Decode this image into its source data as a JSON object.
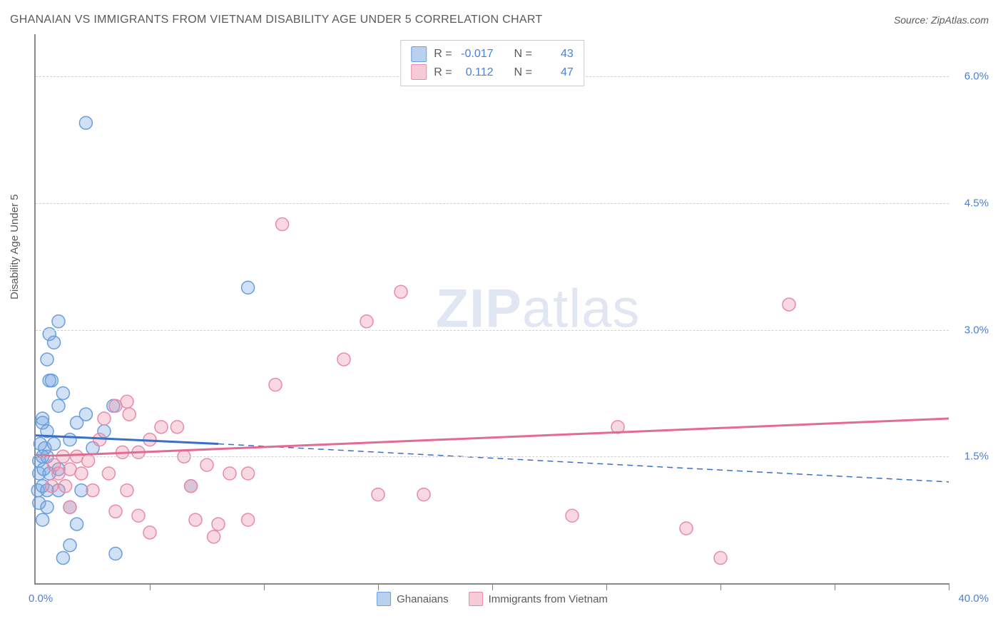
{
  "header": {
    "title": "GHANAIAN VS IMMIGRANTS FROM VIETNAM DISABILITY AGE UNDER 5 CORRELATION CHART",
    "source": "Source: ZipAtlas.com"
  },
  "chart": {
    "type": "scatter",
    "y_axis_label": "Disability Age Under 5",
    "xlim": [
      0,
      40
    ],
    "ylim": [
      0,
      6.5
    ],
    "y_ticks": [
      1.5,
      3.0,
      4.5,
      6.0
    ],
    "y_tick_labels": [
      "1.5%",
      "3.0%",
      "4.5%",
      "6.0%"
    ],
    "x_origin_label": "0.0%",
    "x_max_label": "40.0%",
    "x_ticks": [
      5,
      10,
      15,
      20,
      25,
      30,
      35,
      40
    ],
    "background_color": "#ffffff",
    "grid_color": "#d0d0d0",
    "axis_color": "#888888",
    "tick_label_color": "#4a7fd8",
    "series": [
      {
        "name": "Ghanaians",
        "color_fill": "rgba(120,165,225,0.35)",
        "color_stroke": "#6a9edc",
        "swatch_fill": "#b9d1ef",
        "swatch_border": "#6a9edc",
        "marker_radius": 9,
        "R": "-0.017",
        "N": "43",
        "trend_solid": {
          "x1": 0,
          "y1": 1.75,
          "x2": 8,
          "y2": 1.65
        },
        "trend_dashed": {
          "x1": 8,
          "y1": 1.65,
          "x2": 40,
          "y2": 1.2
        },
        "trend_color": "#3a6fc8",
        "points": [
          [
            2.2,
            5.45
          ],
          [
            1.0,
            3.1
          ],
          [
            0.6,
            2.95
          ],
          [
            0.8,
            2.85
          ],
          [
            0.5,
            2.65
          ],
          [
            0.6,
            2.4
          ],
          [
            0.7,
            2.4
          ],
          [
            1.2,
            2.25
          ],
          [
            1.0,
            2.1
          ],
          [
            3.4,
            2.1
          ],
          [
            0.3,
            1.95
          ],
          [
            2.2,
            2.0
          ],
          [
            0.3,
            1.9
          ],
          [
            0.5,
            1.8
          ],
          [
            1.8,
            1.9
          ],
          [
            3.0,
            1.8
          ],
          [
            9.3,
            3.5
          ],
          [
            0.2,
            1.65
          ],
          [
            0.4,
            1.6
          ],
          [
            0.8,
            1.65
          ],
          [
            1.5,
            1.7
          ],
          [
            2.5,
            1.6
          ],
          [
            0.15,
            1.45
          ],
          [
            0.3,
            1.5
          ],
          [
            0.5,
            1.5
          ],
          [
            0.15,
            1.3
          ],
          [
            0.35,
            1.35
          ],
          [
            0.6,
            1.3
          ],
          [
            1.0,
            1.35
          ],
          [
            0.1,
            1.1
          ],
          [
            0.3,
            1.15
          ],
          [
            0.5,
            1.1
          ],
          [
            1.0,
            1.1
          ],
          [
            2.0,
            1.1
          ],
          [
            6.8,
            1.15
          ],
          [
            0.15,
            0.95
          ],
          [
            0.5,
            0.9
          ],
          [
            1.5,
            0.9
          ],
          [
            0.3,
            0.75
          ],
          [
            1.8,
            0.7
          ],
          [
            1.5,
            0.45
          ],
          [
            1.2,
            0.3
          ],
          [
            3.5,
            0.35
          ]
        ]
      },
      {
        "name": "Immigrants from Vietnam",
        "color_fill": "rgba(235,145,170,0.35)",
        "color_stroke": "#e88aa8",
        "swatch_fill": "#f6cbd7",
        "swatch_border": "#e88aa8",
        "marker_radius": 9,
        "R": "0.112",
        "N": "47",
        "trend_solid": {
          "x1": 0,
          "y1": 1.5,
          "x2": 40,
          "y2": 1.95
        },
        "trend_dashed": null,
        "trend_color": "#e26b93",
        "points": [
          [
            10.8,
            4.25
          ],
          [
            10.5,
            2.35
          ],
          [
            16.0,
            3.45
          ],
          [
            14.5,
            3.1
          ],
          [
            13.5,
            2.65
          ],
          [
            33.0,
            3.3
          ],
          [
            4.0,
            2.15
          ],
          [
            3.5,
            2.1
          ],
          [
            4.1,
            2.0
          ],
          [
            3.0,
            1.95
          ],
          [
            6.2,
            1.85
          ],
          [
            5.5,
            1.85
          ],
          [
            5.0,
            1.7
          ],
          [
            2.8,
            1.7
          ],
          [
            25.5,
            1.85
          ],
          [
            3.8,
            1.55
          ],
          [
            4.5,
            1.55
          ],
          [
            6.5,
            1.5
          ],
          [
            7.5,
            1.4
          ],
          [
            1.2,
            1.5
          ],
          [
            1.8,
            1.5
          ],
          [
            2.3,
            1.45
          ],
          [
            0.8,
            1.4
          ],
          [
            1.5,
            1.35
          ],
          [
            1.0,
            1.3
          ],
          [
            2.0,
            1.3
          ],
          [
            3.2,
            1.3
          ],
          [
            8.5,
            1.3
          ],
          [
            9.3,
            1.3
          ],
          [
            0.7,
            1.15
          ],
          [
            1.3,
            1.15
          ],
          [
            2.5,
            1.1
          ],
          [
            4.0,
            1.1
          ],
          [
            6.8,
            1.15
          ],
          [
            15.0,
            1.05
          ],
          [
            17.0,
            1.05
          ],
          [
            23.5,
            0.8
          ],
          [
            1.5,
            0.9
          ],
          [
            3.5,
            0.85
          ],
          [
            4.5,
            0.8
          ],
          [
            7.0,
            0.75
          ],
          [
            8.0,
            0.7
          ],
          [
            9.3,
            0.75
          ],
          [
            28.5,
            0.65
          ],
          [
            5.0,
            0.6
          ],
          [
            7.8,
            0.55
          ],
          [
            30.0,
            0.3
          ]
        ]
      }
    ],
    "legend": {
      "stats_label_R": "R =",
      "stats_label_N": "N ="
    },
    "watermark": {
      "bold": "ZIP",
      "rest": "atlas"
    }
  }
}
